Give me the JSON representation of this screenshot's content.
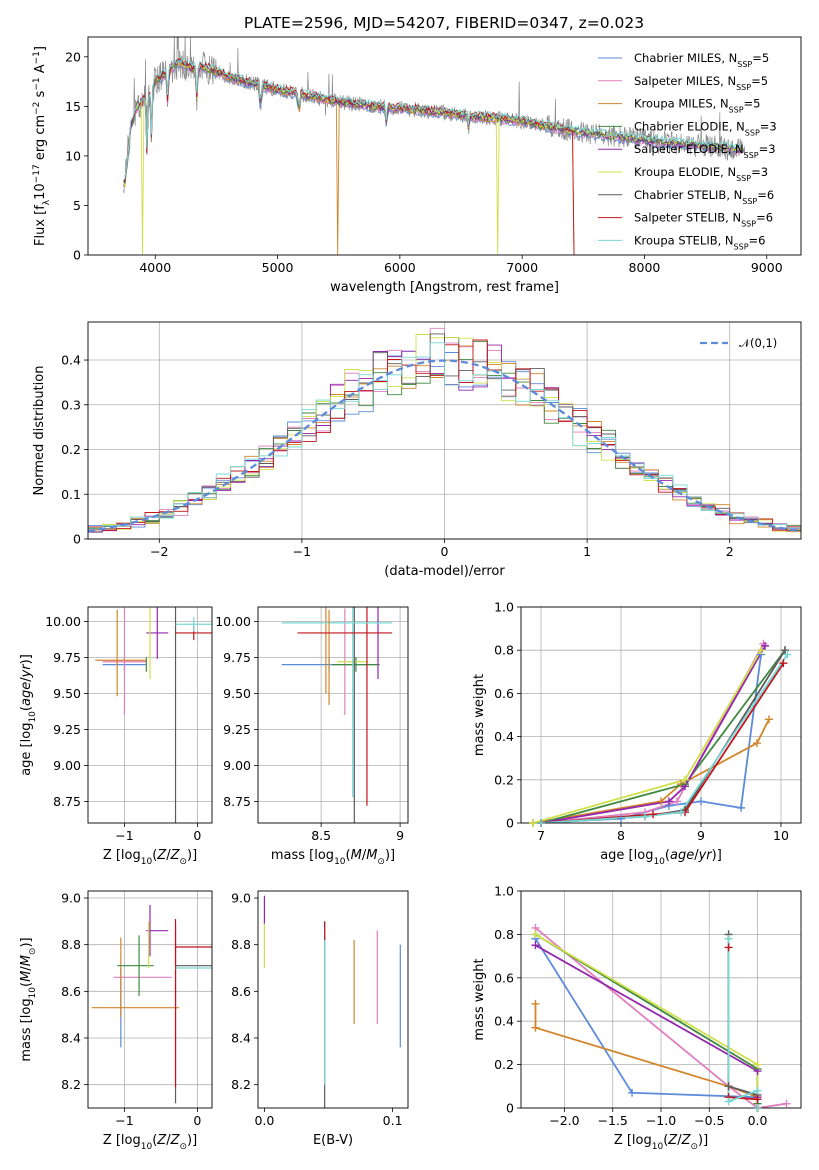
{
  "figure": {
    "title": "PLATE=2596, MJD=54207, FIBERID=0347, z=0.023"
  },
  "colors": [
    "#5b8bd9",
    "#e07fbe",
    "#d2862b",
    "#3f8a3f",
    "#9427ad",
    "#cfe04a",
    "#5c5c5c",
    "#c1151d",
    "#77d8d6"
  ],
  "models": [
    {
      "name": "Chabrier MILES",
      "nssp": 5
    },
    {
      "name": "Salpeter MILES",
      "nssp": 5
    },
    {
      "name": "Kroupa MILES",
      "nssp": 5
    },
    {
      "name": "Chabrier ELODIE",
      "nssp": 3
    },
    {
      "name": "Salpeter ELODIE",
      "nssp": 3
    },
    {
      "name": "Kroupa ELODIE",
      "nssp": 3
    },
    {
      "name": "Chabrier STELIB",
      "nssp": 6
    },
    {
      "name": "Salpeter STELIB",
      "nssp": 6
    },
    {
      "name": "Kroupa STELIB",
      "nssp": 6
    }
  ],
  "chart_data": [
    {
      "id": "spectrum",
      "type": "line",
      "title": "PLATE=2596, MJD=54207, FIBERID=0347, z=0.023",
      "xlabel": "wavelength [Angstrom, rest frame]",
      "ylabel_html": "Flux [f<tspan baseline-shift='sub' font-size='9'>λ</tspan>10<tspan baseline-shift='super' font-size='9'>−17</tspan> erg cm<tspan baseline-shift='super' font-size='9'>−2</tspan> s<tspan baseline-shift='super' font-size='9'>−1</tspan> A<tspan baseline-shift='super' font-size='9'>−1</tspan>]",
      "xlim": [
        3450,
        9280
      ],
      "ylim": [
        0,
        22
      ],
      "xticks": [
        4000,
        5000,
        6000,
        7000,
        8000,
        9000
      ],
      "yticks": [
        0,
        5,
        10,
        15,
        20
      ],
      "legend_position": "upper-right",
      "legend_suffix": "N",
      "legend_sub": "SSP",
      "data_continuum": [
        [
          3750,
          10
        ],
        [
          3800,
          14.5
        ],
        [
          3900,
          15.5
        ],
        [
          4000,
          17.5
        ],
        [
          4100,
          18.5
        ],
        [
          4200,
          19.5
        ],
        [
          4300,
          18.8
        ],
        [
          4400,
          19
        ],
        [
          4500,
          18.5
        ],
        [
          4600,
          18
        ],
        [
          4700,
          17.6
        ],
        [
          4800,
          17.3
        ],
        [
          4900,
          17
        ],
        [
          5000,
          16.7
        ],
        [
          5200,
          16.2
        ],
        [
          5400,
          15.7
        ],
        [
          5600,
          15.3
        ],
        [
          5800,
          15
        ],
        [
          6000,
          14.8
        ],
        [
          6200,
          14.6
        ],
        [
          6400,
          14.3
        ],
        [
          6600,
          14
        ],
        [
          6800,
          13.8
        ],
        [
          7000,
          13.5
        ],
        [
          7200,
          13
        ],
        [
          7400,
          12.5
        ],
        [
          7600,
          12.2
        ],
        [
          7800,
          11.9
        ],
        [
          8000,
          11.6
        ],
        [
          8200,
          11.3
        ],
        [
          8400,
          11.1
        ],
        [
          8600,
          10.9
        ],
        [
          8800,
          10.6
        ]
      ],
      "model_end": 8800
    },
    {
      "id": "residuals",
      "type": "bar",
      "xlabel": "(data-model)/error",
      "ylabel": "Normed distribution",
      "xlim": [
        -2.5,
        2.5
      ],
      "ylim": [
        0,
        0.485
      ],
      "xticks": [
        -2,
        -1,
        0,
        1,
        2
      ],
      "yticks": [
        0.0,
        0.1,
        0.2,
        0.3,
        0.4
      ],
      "grid": true,
      "bin_width": 0.1,
      "reference": {
        "name": "𝒩(0,1)",
        "mean": 0,
        "sigma": 1
      },
      "legend_position": "upper-right"
    },
    {
      "id": "age-vs-Z",
      "type": "scatter",
      "xlabel_html": "Z [log<tspan baseline-shift='sub' font-size='9'>10</tspan>(<tspan font-style='italic'>Z</tspan>/<tspan font-style='italic'>Z</tspan><tspan baseline-shift='sub' font-size='9'>⊙</tspan>)]",
      "ylabel_html": "age  [log<tspan baseline-shift='sub' font-size='9'>10</tspan>(<tspan font-style='italic'>age</tspan>/<tspan font-style='italic'>yr</tspan>)]",
      "xlim": [
        -1.5,
        0.2
      ],
      "ylim": [
        8.6,
        10.1
      ],
      "xticks": [
        -1,
        0
      ],
      "yticks": [
        8.75,
        9.0,
        9.25,
        9.5,
        9.75,
        10.0
      ],
      "grid": true,
      "points": [
        {
          "x": -1.0,
          "xerr": 0.3,
          "y": 9.7,
          "yerr": 0.05,
          "c": 0
        },
        {
          "x": -1.0,
          "xerr": 0.3,
          "y": 9.72,
          "yerr": 0.37,
          "c": 1
        },
        {
          "x": -1.1,
          "xerr": 0.0,
          "y": 9.78,
          "yerr": 0.3,
          "c": 2
        },
        {
          "x": -0.7,
          "xerr": 0.0,
          "y": 9.7,
          "yerr": 0.05,
          "c": 3
        },
        {
          "x": -0.55,
          "xerr": 0.15,
          "y": 9.92,
          "yerr": 0.18,
          "c": 4
        },
        {
          "x": -0.65,
          "xerr": 0.0,
          "y": 9.85,
          "yerr": 0.25,
          "c": 5
        },
        {
          "x": -0.3,
          "xerr": 0.0,
          "y": 9.85,
          "yerr": 1.25,
          "c": 6
        },
        {
          "x": -0.05,
          "xerr": 0.25,
          "y": 9.92,
          "yerr": 0.05,
          "c": 7
        },
        {
          "x": -0.05,
          "xerr": 0.25,
          "y": 9.98,
          "yerr": 0.05,
          "c": 8
        },
        {
          "x": -1.05,
          "xerr": 0.35,
          "y": 9.73,
          "yerr": 0.0,
          "c": 2
        }
      ]
    },
    {
      "id": "age-vs-mass",
      "type": "scatter",
      "xlabel_html": "mass [log<tspan baseline-shift='sub' font-size='9'>10</tspan>(<tspan font-style='italic'>M</tspan>/<tspan font-style='italic'>M</tspan><tspan baseline-shift='sub' font-size='9'>⊙</tspan>)]",
      "xlim": [
        8.1,
        9.05
      ],
      "ylim": [
        8.6,
        10.1
      ],
      "xticks": [
        8.5,
        9.0
      ],
      "yticks": [
        8.75,
        9.0,
        9.25,
        9.5,
        9.75,
        10.0
      ],
      "grid": true,
      "points": [
        {
          "x": 8.55,
          "xerr": 0.3,
          "y": 9.7,
          "yerr": 0.05,
          "c": 0
        },
        {
          "x": 8.65,
          "xerr": 0.0,
          "y": 9.72,
          "yerr": 0.37,
          "c": 1
        },
        {
          "x": 8.53,
          "xerr": 0.0,
          "y": 9.8,
          "yerr": 0.3,
          "c": 2
        },
        {
          "x": 8.72,
          "xerr": 0.15,
          "y": 9.7,
          "yerr": 0.05,
          "c": 3
        },
        {
          "x": 8.86,
          "xerr": 0.0,
          "y": 9.9,
          "yerr": 0.3,
          "c": 4
        },
        {
          "x": 8.7,
          "xerr": 0.1,
          "y": 9.72,
          "yerr": 0.0,
          "c": 5
        },
        {
          "x": 8.71,
          "xerr": 0.0,
          "y": 9.85,
          "yerr": 1.25,
          "c": 6
        },
        {
          "x": 8.79,
          "xerr": 0.0,
          "y": 9.92,
          "yerr": 1.2,
          "c": 7
        },
        {
          "x": 8.7,
          "xerr": 0.0,
          "y": 9.98,
          "yerr": 1.2,
          "c": 8
        },
        {
          "x": 8.6,
          "xerr": 0.35,
          "y": 9.99,
          "yerr": 0.0,
          "c": 8
        },
        {
          "x": 8.55,
          "xerr": 0.0,
          "y": 9.75,
          "yerr": 0.33,
          "c": 2
        },
        {
          "x": 8.65,
          "xerr": 0.3,
          "y": 9.92,
          "yerr": 0.0,
          "c": 7
        }
      ]
    },
    {
      "id": "massweight-vs-age",
      "type": "line",
      "xlabel_html": "age  [log<tspan baseline-shift='sub' font-size='9'>10</tspan>(<tspan font-style='italic'>age</tspan>/<tspan font-style='italic'>yr</tspan>)]",
      "ylabel": "mass weight",
      "xlim": [
        6.75,
        10.25
      ],
      "ylim": [
        0,
        1
      ],
      "xticks": [
        7,
        8,
        9,
        10
      ],
      "yticks": [
        0.0,
        0.2,
        0.4,
        0.6,
        0.8,
        1.0
      ],
      "grid": true,
      "series": [
        {
          "c": 0,
          "points": [
            [
              6.9,
              0.0
            ],
            [
              8.0,
              0.02
            ],
            [
              8.6,
              0.08
            ],
            [
              9.0,
              0.1
            ],
            [
              9.5,
              0.07
            ],
            [
              9.75,
              0.78
            ]
          ]
        },
        {
          "c": 1,
          "points": [
            [
              7.0,
              0.0
            ],
            [
              8.3,
              0.05
            ],
            [
              8.7,
              0.1
            ],
            [
              9.78,
              0.83
            ]
          ]
        },
        {
          "c": 2,
          "points": [
            [
              6.9,
              0.0
            ],
            [
              8.5,
              0.1
            ],
            [
              8.75,
              0.18
            ],
            [
              9.7,
              0.37
            ],
            [
              9.85,
              0.48
            ]
          ]
        },
        {
          "c": 3,
          "points": [
            [
              7.0,
              0.0
            ],
            [
              8.8,
              0.18
            ],
            [
              10.05,
              0.8
            ]
          ]
        },
        {
          "c": 4,
          "points": [
            [
              7.0,
              0.0
            ],
            [
              8.6,
              0.1
            ],
            [
              8.8,
              0.17
            ],
            [
              9.8,
              0.82
            ]
          ]
        },
        {
          "c": 5,
          "points": [
            [
              6.9,
              0.0
            ],
            [
              8.8,
              0.2
            ],
            [
              9.75,
              0.8
            ]
          ]
        },
        {
          "c": 6,
          "points": [
            [
              7.0,
              0.0
            ],
            [
              8.3,
              0.03
            ],
            [
              8.8,
              0.06
            ],
            [
              10.05,
              0.8
            ]
          ]
        },
        {
          "c": 7,
          "points": [
            [
              7.0,
              0.0
            ],
            [
              8.4,
              0.04
            ],
            [
              8.8,
              0.05
            ],
            [
              10.03,
              0.74
            ]
          ]
        },
        {
          "c": 8,
          "points": [
            [
              7.0,
              0.0
            ],
            [
              8.3,
              0.03
            ],
            [
              8.75,
              0.05
            ],
            [
              10.08,
              0.78
            ]
          ]
        }
      ]
    },
    {
      "id": "mass-vs-Z",
      "type": "scatter",
      "xlabel_html": "Z [log<tspan baseline-shift='sub' font-size='9'>10</tspan>(<tspan font-style='italic'>Z</tspan>/<tspan font-style='italic'>Z</tspan><tspan baseline-shift='sub' font-size='9'>⊙</tspan>)]",
      "ylabel_html": "mass [log<tspan baseline-shift='sub' font-size='9'>10</tspan>(<tspan font-style='italic'>M</tspan>/<tspan font-style='italic'>M</tspan><tspan baseline-shift='sub' font-size='9'>⊙</tspan>)]",
      "xlim": [
        -1.5,
        0.2
      ],
      "ylim": [
        8.1,
        9.03
      ],
      "xticks": [
        -1,
        0
      ],
      "yticks": [
        8.2,
        8.4,
        8.6,
        8.8,
        9.0
      ],
      "grid": true,
      "points": [
        {
          "x": -1.05,
          "xerr": 0.0,
          "y": 8.53,
          "yerr": 0.17,
          "c": 0
        },
        {
          "x": -0.75,
          "xerr": 0.4,
          "y": 8.66,
          "yerr": 0.0,
          "c": 1
        },
        {
          "x": -1.05,
          "xerr": 0.0,
          "y": 8.66,
          "yerr": 0.17,
          "c": 2
        },
        {
          "x": -0.85,
          "xerr": 0.6,
          "y": 8.53,
          "yerr": 0.0,
          "c": 2
        },
        {
          "x": -0.85,
          "xerr": 0.25,
          "y": 8.71,
          "yerr": 0.0,
          "c": 3
        },
        {
          "x": -0.8,
          "xerr": 0.0,
          "y": 8.71,
          "yerr": 0.13,
          "c": 3
        },
        {
          "x": -0.55,
          "xerr": 0.15,
          "y": 8.86,
          "yerr": 0.0,
          "c": 4
        },
        {
          "x": -0.65,
          "xerr": 0.0,
          "y": 8.86,
          "yerr": 0.11,
          "c": 4
        },
        {
          "x": -0.67,
          "xerr": 0.0,
          "y": 8.8,
          "yerr": 0.1,
          "c": 5
        },
        {
          "x": -0.3,
          "xerr": 0.0,
          "y": 8.5,
          "yerr": 0.38,
          "c": 6
        },
        {
          "x": -0.05,
          "xerr": 0.25,
          "y": 8.79,
          "yerr": 0.0,
          "c": 7
        },
        {
          "x": -0.3,
          "xerr": 0.0,
          "y": 8.55,
          "yerr": 0.36,
          "c": 7
        },
        {
          "x": -0.05,
          "xerr": 0.25,
          "y": 8.7,
          "yerr": 0.0,
          "c": 8
        },
        {
          "x": -0.05,
          "xerr": 0.25,
          "y": 8.71,
          "yerr": 0.0,
          "c": 6
        }
      ]
    },
    {
      "id": "mass-vs-ebv",
      "type": "scatter",
      "xlabel": "E(B-V)",
      "xlim": [
        -0.005,
        0.112
      ],
      "ylim": [
        8.1,
        9.03
      ],
      "xticks": [
        0.0,
        0.1
      ],
      "xtick_labels": [
        "0.0",
        "0.1"
      ],
      "yticks": [
        8.2,
        8.4,
        8.6,
        8.8,
        9.0
      ],
      "grid": false,
      "points": [
        {
          "x": 0.106,
          "xerr": 0.0,
          "y": 8.58,
          "yerr": 0.22,
          "c": 0
        },
        {
          "x": 0.088,
          "xerr": 0.0,
          "y": 8.66,
          "yerr": 0.2,
          "c": 1
        },
        {
          "x": 0.07,
          "xerr": 0.0,
          "y": 8.64,
          "yerr": 0.18,
          "c": 2
        },
        {
          "x": 0.047,
          "xerr": 0.0,
          "y": 8.5,
          "yerr": 0.4,
          "c": 6
        },
        {
          "x": 0.047,
          "xerr": 0.0,
          "y": 8.55,
          "yerr": 0.35,
          "c": 8
        },
        {
          "x": 0.0,
          "xerr": 0.0,
          "y": 8.8,
          "yerr": 0.1,
          "c": 5
        },
        {
          "x": 0.0,
          "xerr": 0.0,
          "y": 8.95,
          "yerr": 0.06,
          "c": 4
        },
        {
          "x": 0.047,
          "xerr": 0.0,
          "y": 8.86,
          "yerr": 0.04,
          "c": 7
        }
      ]
    },
    {
      "id": "massweight-vs-Z",
      "type": "line",
      "xlabel_html": "Z [log<tspan baseline-shift='sub' font-size='9'>10</tspan>(<tspan font-style='italic'>Z</tspan>/<tspan font-style='italic'>Z</tspan><tspan baseline-shift='sub' font-size='9'>⊙</tspan>)]",
      "ylabel": "mass weight",
      "xlim": [
        -2.45,
        0.45
      ],
      "ylim": [
        0,
        1
      ],
      "xticks": [
        -2.0,
        -1.5,
        -1.0,
        -0.5,
        0.0
      ],
      "xtick_labels": [
        "−2.0",
        "−1.5",
        "−1.0",
        "−0.5",
        "0.0"
      ],
      "yticks": [
        0.0,
        0.2,
        0.4,
        0.6,
        0.8,
        1.0
      ],
      "grid": true,
      "series": [
        {
          "c": 0,
          "points": [
            [
              -2.3,
              0.78
            ],
            [
              -1.3,
              0.07
            ],
            [
              0.0,
              0.05
            ],
            [
              0.0,
              0.0
            ]
          ]
        },
        {
          "c": 1,
          "points": [
            [
              -2.3,
              0.83
            ],
            [
              -0.3,
              0.1
            ],
            [
              0.0,
              0.0
            ],
            [
              0.3,
              0.02
            ]
          ]
        },
        {
          "c": 2,
          "points": [
            [
              -2.3,
              0.48
            ],
            [
              -2.3,
              0.37
            ],
            [
              -0.3,
              0.1
            ],
            [
              0.0,
              0.05
            ],
            [
              0.0,
              0.0
            ]
          ]
        },
        {
          "c": 3,
          "points": [
            [
              -2.3,
              0.8
            ],
            [
              0.0,
              0.18
            ],
            [
              0.0,
              0.02
            ]
          ]
        },
        {
          "c": 4,
          "points": [
            [
              -2.3,
              0.75
            ],
            [
              0.0,
              0.17
            ],
            [
              0.0,
              0.05
            ]
          ]
        },
        {
          "c": 5,
          "points": [
            [
              -2.3,
              0.8
            ],
            [
              0.0,
              0.2
            ],
            [
              0.0,
              0.0
            ]
          ]
        },
        {
          "c": 6,
          "points": [
            [
              -0.3,
              0.8
            ],
            [
              -0.3,
              0.1
            ],
            [
              0.0,
              0.06
            ],
            [
              0.0,
              0.0
            ]
          ]
        },
        {
          "c": 7,
          "points": [
            [
              -0.3,
              0.74
            ],
            [
              -0.3,
              0.05
            ],
            [
              0.0,
              0.04
            ],
            [
              0.0,
              0.0
            ]
          ]
        },
        {
          "c": 8,
          "points": [
            [
              -0.3,
              0.78
            ],
            [
              -0.3,
              0.03
            ],
            [
              0.0,
              0.08
            ],
            [
              0.0,
              0.0
            ]
          ]
        }
      ]
    }
  ]
}
